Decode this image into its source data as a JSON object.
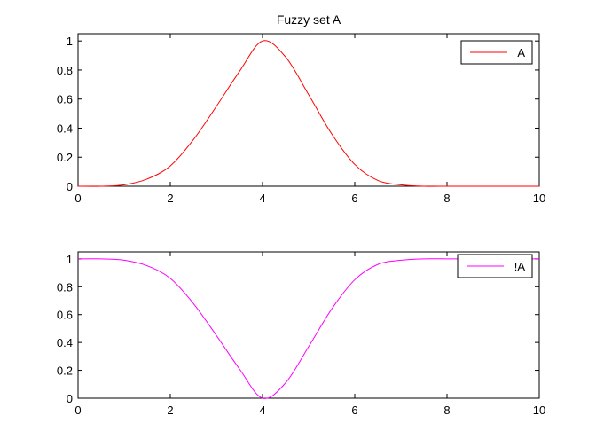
{
  "chart_data": [
    {
      "type": "line",
      "title": "Fuzzy set A",
      "xlabel": "",
      "ylabel": "",
      "xlim": [
        0,
        10
      ],
      "ylim": [
        0,
        1.05
      ],
      "x_ticks": [
        0,
        2,
        4,
        6,
        8,
        10
      ],
      "y_ticks": [
        0,
        0.2,
        0.4,
        0.6,
        0.8,
        1
      ],
      "x_tick_labels": [
        "0",
        "2",
        "4",
        "6",
        "8",
        "10"
      ],
      "y_tick_labels": [
        "0",
        "0.2",
        "0.4",
        "0.6",
        "0.8",
        "1"
      ],
      "grid": false,
      "legend_position": "top-right",
      "series": [
        {
          "name": "A",
          "color": "#ff0000",
          "x": [
            0,
            0.5,
            1,
            1.5,
            2,
            2.5,
            3,
            3.5,
            4,
            4.5,
            5,
            5.5,
            6,
            6.5,
            7,
            7.5,
            8,
            8.5,
            9,
            9.5,
            10
          ],
          "y": [
            0,
            0,
            0.01,
            0.05,
            0.14,
            0.32,
            0.55,
            0.79,
            1,
            0.89,
            0.63,
            0.36,
            0.15,
            0.04,
            0.01,
            0,
            0,
            0,
            0,
            0,
            0
          ]
        }
      ]
    },
    {
      "type": "line",
      "title": "",
      "xlabel": "",
      "ylabel": "",
      "xlim": [
        0,
        10
      ],
      "ylim": [
        0,
        1.05
      ],
      "x_ticks": [
        0,
        2,
        4,
        6,
        8,
        10
      ],
      "y_ticks": [
        0,
        0.2,
        0.4,
        0.6,
        0.8,
        1
      ],
      "x_tick_labels": [
        "0",
        "2",
        "4",
        "6",
        "8",
        "10"
      ],
      "y_tick_labels": [
        "0",
        "0.2",
        "0.4",
        "0.6",
        "0.8",
        "1"
      ],
      "grid": false,
      "legend_position": "top-right",
      "series": [
        {
          "name": "!A",
          "color": "#ff00ff",
          "x": [
            0,
            0.5,
            1,
            1.5,
            2,
            2.5,
            3,
            3.5,
            4,
            4.5,
            5,
            5.5,
            6,
            6.5,
            7,
            7.5,
            8,
            8.5,
            9,
            9.5,
            10
          ],
          "y": [
            1,
            1,
            0.99,
            0.95,
            0.86,
            0.68,
            0.45,
            0.21,
            0,
            0.11,
            0.37,
            0.64,
            0.85,
            0.96,
            0.99,
            1,
            1,
            1,
            1,
            1,
            1
          ]
        }
      ]
    }
  ]
}
